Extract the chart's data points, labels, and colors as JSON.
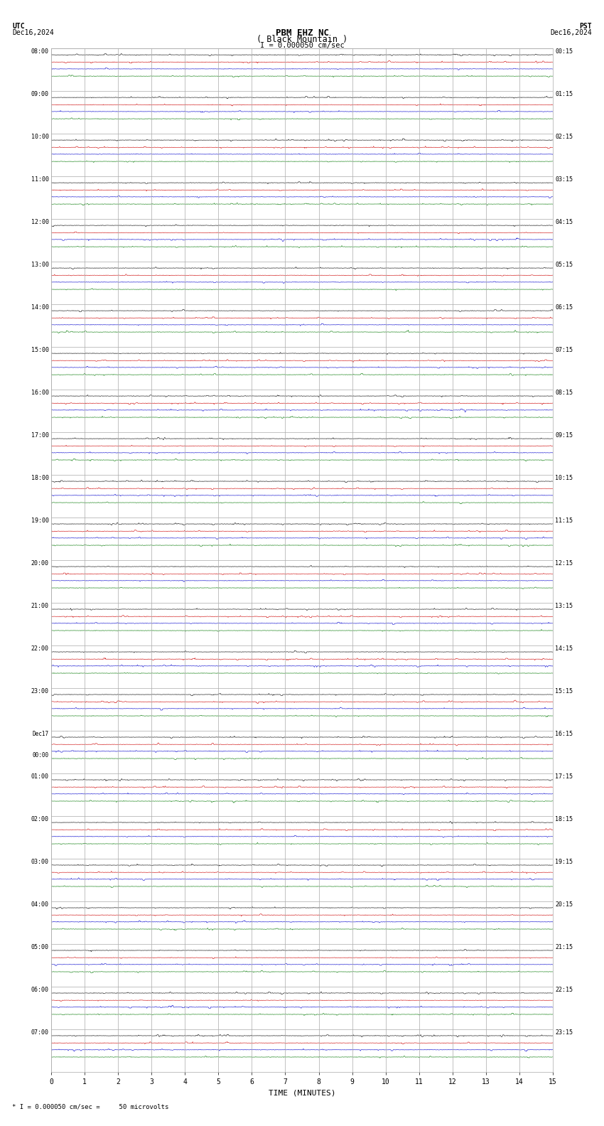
{
  "title_line1": "PBM EHZ NC",
  "title_line2": "( Black Mountain )",
  "scale_text": "I = 0.000050 cm/sec",
  "footer_text": "* I = 0.000050 cm/sec =     50 microvolts",
  "utc_label": "UTC",
  "utc_date": "Dec16,2024",
  "pst_label": "PST",
  "pst_date": "Dec16,2024",
  "xlabel": "TIME (MINUTES)",
  "left_labels_utc": [
    "08:00",
    "09:00",
    "10:00",
    "11:00",
    "12:00",
    "13:00",
    "14:00",
    "15:00",
    "16:00",
    "17:00",
    "18:00",
    "19:00",
    "20:00",
    "21:00",
    "22:00",
    "23:00",
    "Dec17\n00:00",
    "01:00",
    "02:00",
    "03:00",
    "04:00",
    "05:00",
    "06:00",
    "07:00"
  ],
  "right_labels_pst": [
    "00:15",
    "01:15",
    "02:15",
    "03:15",
    "04:15",
    "05:15",
    "06:15",
    "07:15",
    "08:15",
    "09:15",
    "10:15",
    "11:15",
    "12:15",
    "13:15",
    "14:15",
    "15:15",
    "16:15",
    "17:15",
    "18:15",
    "19:15",
    "20:15",
    "21:15",
    "22:15",
    "23:15"
  ],
  "n_rows": 24,
  "n_traces_per_row": 4,
  "minutes_per_row": 15,
  "bg_color": "#ffffff",
  "grid_color": "#aaaaaa",
  "trace_colors": [
    "#000000",
    "#cc0000",
    "#0000cc",
    "#007700"
  ],
  "fig_width": 8.5,
  "fig_height": 15.84
}
